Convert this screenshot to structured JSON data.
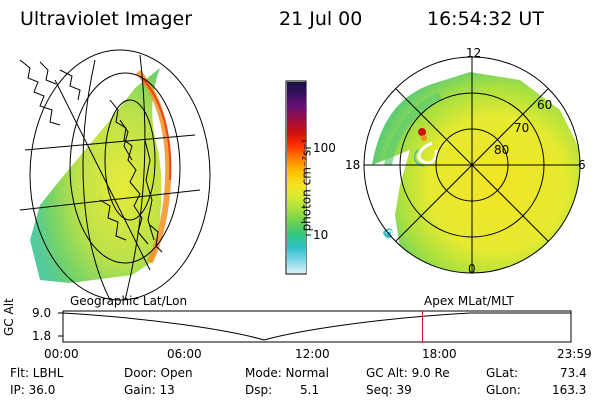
{
  "header": {
    "instrument": "Ultraviolet Imager",
    "date": "21 Jul 00",
    "time": "16:54:32 UT"
  },
  "colorbar": {
    "label": "photon cm⁻²s⁻¹",
    "ticks": [
      "100",
      "10"
    ],
    "colors": [
      "#1a1040",
      "#3a1060",
      "#6a1070",
      "#a01040",
      "#d01010",
      "#ff3000",
      "#ff8000",
      "#ffbe00",
      "#f5e020",
      "#d8ec30",
      "#a8e040",
      "#6cd050",
      "#30c880",
      "#30c0c8",
      "#80d8e8",
      "#d8f0f4"
    ]
  },
  "panels": {
    "geo_label": "Geographic Lat/Lon",
    "polar_label": "Apex MLat/MLT",
    "mlt_labels": [
      "12",
      "18",
      "6",
      "0"
    ],
    "mlat_labels": [
      "60",
      "70",
      "80"
    ]
  },
  "timeline": {
    "axis_label": "GC Alt",
    "y_ticks": [
      "9.0",
      "1.8"
    ],
    "x_ticks": [
      "00:00",
      "06:00",
      "12:00",
      "18:00",
      "23:59"
    ],
    "current_time_fraction": 0.707
  },
  "info": {
    "filter": "Flt: LBHL",
    "ip": "IP: 36.0",
    "door": "Door: Open",
    "gain": "Gain: 13",
    "mode": "Mode: Normal",
    "dsp_label": "Dsp:",
    "dsp_value": "5.1",
    "gc_alt": "GC Alt: 9.0 Re",
    "seq": "Seq: 39",
    "glat_label": "GLat:",
    "glat_value": "73.4",
    "glon_label": "GLon:",
    "glon_value": "163.3"
  }
}
